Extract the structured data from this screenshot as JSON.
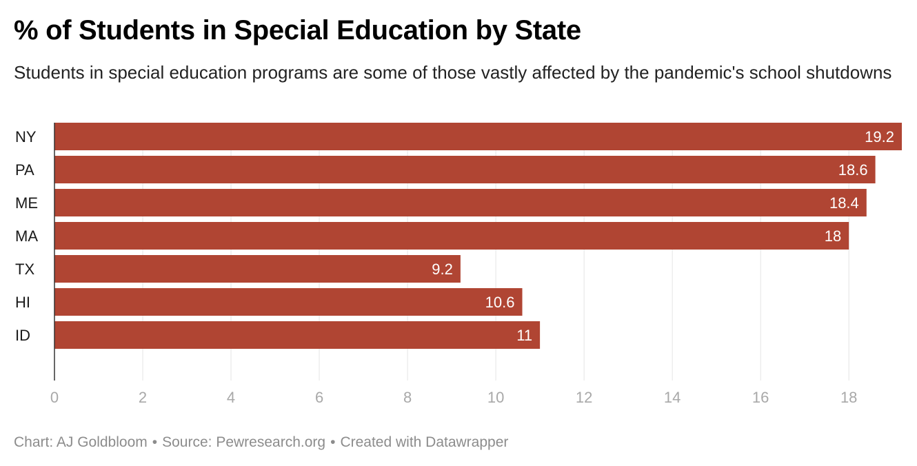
{
  "title": "% of Students in Special Education by State",
  "subtitle": "Students in special education programs are some of those vastly affected by the pandemic's school shutdowns",
  "footer": {
    "credit": "Chart: AJ Goldbloom",
    "separator": "•",
    "source": "Source: Pewresearch.org",
    "tool": "Created with Datawrapper"
  },
  "colors": {
    "bar": "#b04533",
    "grid": "#e4e4e4",
    "axis": "#333333",
    "tick_text": "#a8a8a8",
    "value_text": "#ffffff"
  },
  "chart_data": {
    "type": "bar",
    "orientation": "horizontal",
    "title": "% of Students in Special Education by State",
    "subtitle": "Students in special education programs are some of those vastly affected by the pandemic's school shutdowns",
    "categories": [
      "NY",
      "PA",
      "ME",
      "MA",
      "TX",
      "HI",
      "ID"
    ],
    "values": [
      19.2,
      18.6,
      18.4,
      18,
      9.2,
      10.6,
      11
    ],
    "value_labels": [
      "19.2",
      "18.6",
      "18.4",
      "18",
      "9.2",
      "10.6",
      "11"
    ],
    "xlim": [
      0,
      19.2
    ],
    "xticks": [
      0,
      2,
      4,
      6,
      8,
      10,
      12,
      14,
      16,
      18
    ],
    "xtick_labels": [
      "0",
      "2",
      "4",
      "6",
      "8",
      "10",
      "12",
      "14",
      "16",
      "18"
    ],
    "grid": true,
    "legend": false
  }
}
